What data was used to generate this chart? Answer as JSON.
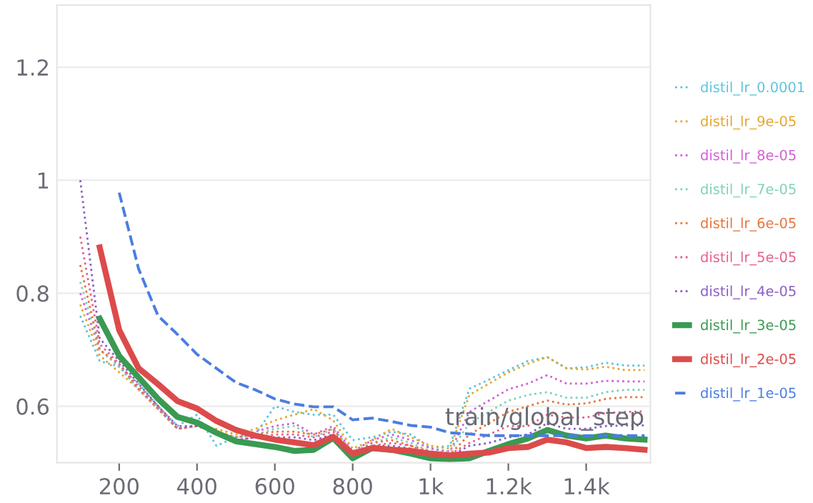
{
  "chart_data": {
    "type": "line",
    "xlabel": "train/global_step",
    "x": [
      100,
      150,
      200,
      250,
      300,
      350,
      400,
      450,
      500,
      550,
      600,
      650,
      700,
      750,
      800,
      850,
      900,
      950,
      1000,
      1050,
      1100,
      1150,
      1200,
      1250,
      1300,
      1350,
      1400,
      1450,
      1500,
      1550
    ],
    "xlim": [
      40,
      1565
    ],
    "xticks": [
      200,
      400,
      600,
      800,
      {
        "value": 1000,
        "label": "1k"
      },
      {
        "value": 1200,
        "label": "1.2k"
      },
      {
        "value": 1400,
        "label": "1.4k"
      }
    ],
    "ylim": [
      0.5,
      1.31
    ],
    "yticks": [
      0.6,
      0.8,
      1,
      1.2
    ],
    "grid": "y",
    "legend": "right",
    "series": [
      {
        "name": "distil_lr_0.0001",
        "color": "#5bc5db",
        "line_style": "dotted",
        "values": [
          0.76,
          0.68,
          0.67,
          0.64,
          0.6,
          0.565,
          0.585,
          0.53,
          0.545,
          0.55,
          0.6,
          0.59,
          0.585,
          0.585,
          0.54,
          0.545,
          0.555,
          0.55,
          0.526,
          0.53,
          0.631,
          0.647,
          0.664,
          0.68,
          0.687,
          0.667,
          0.669,
          0.677,
          0.672,
          0.672
        ]
      },
      {
        "name": "distil_lr_9e-05",
        "color": "#e5a62c",
        "line_style": "dotted",
        "values": [
          0.78,
          0.69,
          0.66,
          0.63,
          0.6,
          0.56,
          0.565,
          0.56,
          0.55,
          0.56,
          0.575,
          0.585,
          0.595,
          0.575,
          0.525,
          0.54,
          0.56,
          0.545,
          0.53,
          0.525,
          0.62,
          0.64,
          0.66,
          0.675,
          0.687,
          0.667,
          0.665,
          0.67,
          0.664,
          0.664
        ]
      },
      {
        "name": "distil_lr_8e-05",
        "color": "#d35fd6",
        "line_style": "dotted",
        "values": [
          0.8,
          0.7,
          0.67,
          0.63,
          0.595,
          0.56,
          0.565,
          0.555,
          0.545,
          0.555,
          0.565,
          0.57,
          0.55,
          0.565,
          0.52,
          0.54,
          0.55,
          0.54,
          0.525,
          0.52,
          0.59,
          0.61,
          0.63,
          0.64,
          0.655,
          0.64,
          0.64,
          0.645,
          0.644,
          0.644
        ]
      },
      {
        "name": "distil_lr_7e-05",
        "color": "#7fd1b9",
        "line_style": "dotted",
        "values": [
          0.82,
          0.7,
          0.67,
          0.63,
          0.595,
          0.56,
          0.565,
          0.555,
          0.545,
          0.55,
          0.56,
          0.565,
          0.545,
          0.56,
          0.52,
          0.535,
          0.545,
          0.535,
          0.52,
          0.52,
          0.57,
          0.59,
          0.61,
          0.62,
          0.625,
          0.615,
          0.615,
          0.625,
          0.629,
          0.629
        ]
      },
      {
        "name": "distil_lr_6e-05",
        "color": "#e8743b",
        "line_style": "dotted",
        "values": [
          0.85,
          0.7,
          0.675,
          0.63,
          0.595,
          0.56,
          0.565,
          0.555,
          0.545,
          0.55,
          0.555,
          0.555,
          0.55,
          0.56,
          0.515,
          0.535,
          0.54,
          0.53,
          0.52,
          0.515,
          0.55,
          0.57,
          0.59,
          0.6,
          0.61,
          0.603,
          0.605,
          0.613,
          0.616,
          0.616
        ]
      },
      {
        "name": "distil_lr_5e-05",
        "color": "#e8608a",
        "line_style": "dotted",
        "values": [
          0.9,
          0.71,
          0.675,
          0.635,
          0.6,
          0.56,
          0.565,
          0.555,
          0.54,
          0.545,
          0.55,
          0.55,
          0.545,
          0.555,
          0.515,
          0.53,
          0.535,
          0.53,
          0.515,
          0.515,
          0.535,
          0.55,
          0.565,
          0.565,
          0.585,
          0.58,
          0.58,
          0.588,
          0.59,
          0.591
        ]
      },
      {
        "name": "distil_lr_4e-05",
        "color": "#8a5cc8",
        "line_style": "dotted",
        "values": [
          1.0,
          0.72,
          0.68,
          0.64,
          0.6,
          0.565,
          0.565,
          null,
          0.54,
          0.545,
          0.545,
          0.545,
          0.54,
          0.55,
          0.515,
          0.53,
          0.53,
          0.525,
          0.515,
          0.512,
          0.53,
          0.535,
          0.545,
          0.55,
          0.57,
          0.56,
          0.56,
          0.565,
          0.566,
          0.566
        ]
      },
      {
        "name": "distil_lr_3e-05",
        "color": "#3a9a52",
        "line_style": "solid",
        "values": [
          null,
          0.755,
          0.689,
          0.651,
          0.613,
          0.581,
          0.571,
          0.553,
          0.538,
          0.533,
          0.528,
          0.521,
          0.523,
          0.544,
          0.508,
          0.526,
          0.523,
          0.516,
          0.508,
          0.506,
          0.508,
          0.521,
          0.533,
          0.543,
          0.558,
          0.548,
          0.543,
          0.548,
          0.543,
          0.541
        ]
      },
      {
        "name": "distil_lr_2e-05",
        "color": "#dc4b4b",
        "line_style": "solid",
        "values": [
          null,
          0.881,
          0.735,
          0.667,
          0.639,
          0.609,
          0.596,
          0.574,
          0.558,
          0.548,
          0.541,
          0.536,
          0.531,
          0.546,
          0.516,
          0.526,
          0.523,
          0.521,
          0.516,
          0.513,
          0.516,
          0.518,
          0.526,
          0.528,
          0.541,
          0.536,
          0.526,
          0.528,
          0.526,
          0.523
        ]
      },
      {
        "name": "distil_lr_1e-05",
        "color": "#4a7ee0",
        "line_style": "dashed",
        "values": [
          null,
          null,
          0.978,
          0.843,
          0.76,
          0.727,
          0.692,
          0.667,
          0.642,
          0.629,
          0.613,
          0.604,
          0.599,
          0.599,
          0.576,
          0.579,
          0.573,
          0.566,
          0.563,
          0.553,
          0.551,
          0.548,
          0.548,
          0.548,
          0.548,
          0.548,
          0.548,
          0.548,
          0.548,
          0.548
        ]
      }
    ]
  }
}
